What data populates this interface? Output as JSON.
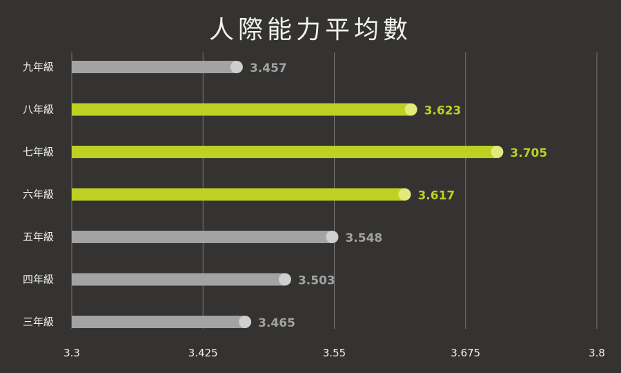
{
  "chart_data": {
    "type": "bar",
    "orientation": "horizontal",
    "title": "人際能力平均數",
    "categories": [
      "九年級",
      "八年級",
      "七年級",
      "六年級",
      "五年級",
      "四年級",
      "三年級"
    ],
    "values": [
      3.457,
      3.623,
      3.705,
      3.617,
      3.548,
      3.503,
      3.465
    ],
    "value_labels": [
      "3.457",
      "3.623",
      "3.705",
      "3.617",
      "3.548",
      "3.503",
      "3.465"
    ],
    "highlighted": [
      false,
      true,
      true,
      true,
      false,
      false,
      false
    ],
    "xlim": [
      3.3,
      3.8
    ],
    "xticks": [
      3.3,
      3.425,
      3.55,
      3.675,
      3.8
    ],
    "xtick_labels": [
      "3.3",
      "3.425",
      "3.55",
      "3.675",
      "3.8"
    ],
    "grid": true,
    "xlabel": "",
    "ylabel": ""
  },
  "colors": {
    "background": "#343331",
    "title": "#f1f1ef",
    "axis_text": "#f1f1ef",
    "grid": "#7a7976",
    "bar_default": "#a3a3a3",
    "bar_default_marker": "#cfcfcf",
    "label_default": "#a3a3a3",
    "bar_highlight": "#bed022",
    "bar_highlight_marker": "#e1ea7b",
    "label_highlight": "#bed022"
  }
}
